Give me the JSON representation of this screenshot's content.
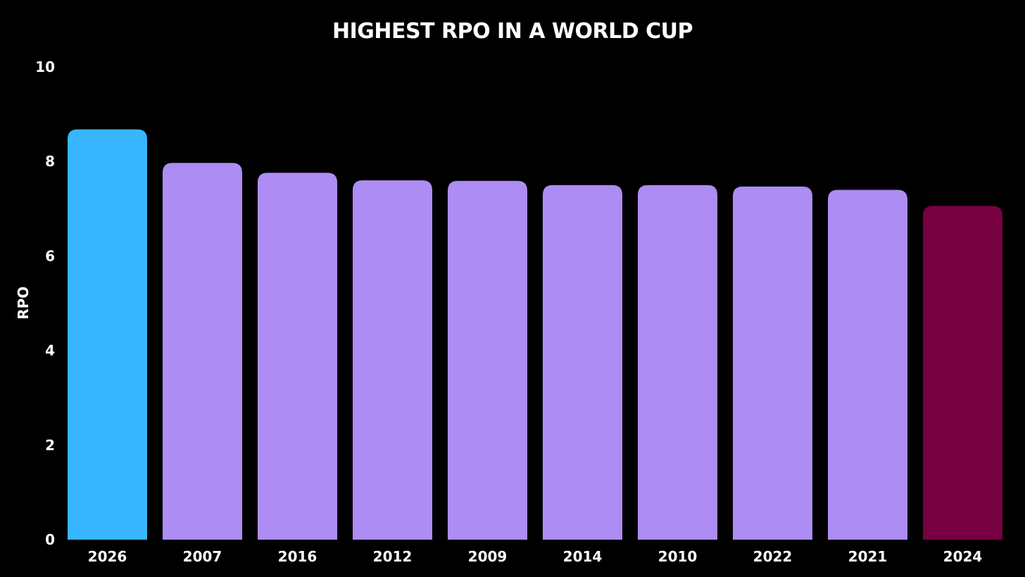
{
  "chart_data": {
    "type": "bar",
    "title": "HIGHEST RPO IN A WORLD CUP",
    "xlabel": "",
    "ylabel": "RPO",
    "ylim": [
      0,
      10
    ],
    "yticks": [
      "0",
      "2",
      "4",
      "6",
      "8",
      "10"
    ],
    "grid": false,
    "categories": [
      "2026",
      "2007",
      "2016",
      "2012",
      "2009",
      "2014",
      "2010",
      "2022",
      "2021",
      "2024"
    ],
    "values": [
      8.68,
      7.97,
      7.76,
      7.6,
      7.59,
      7.5,
      7.5,
      7.47,
      7.4,
      7.06
    ],
    "colors": [
      "#38b6ff",
      "#ad8cf3",
      "#ad8cf3",
      "#ad8cf3",
      "#ad8cf3",
      "#ad8cf3",
      "#ad8cf3",
      "#ad8cf3",
      "#ad8cf3",
      "#760040"
    ]
  }
}
